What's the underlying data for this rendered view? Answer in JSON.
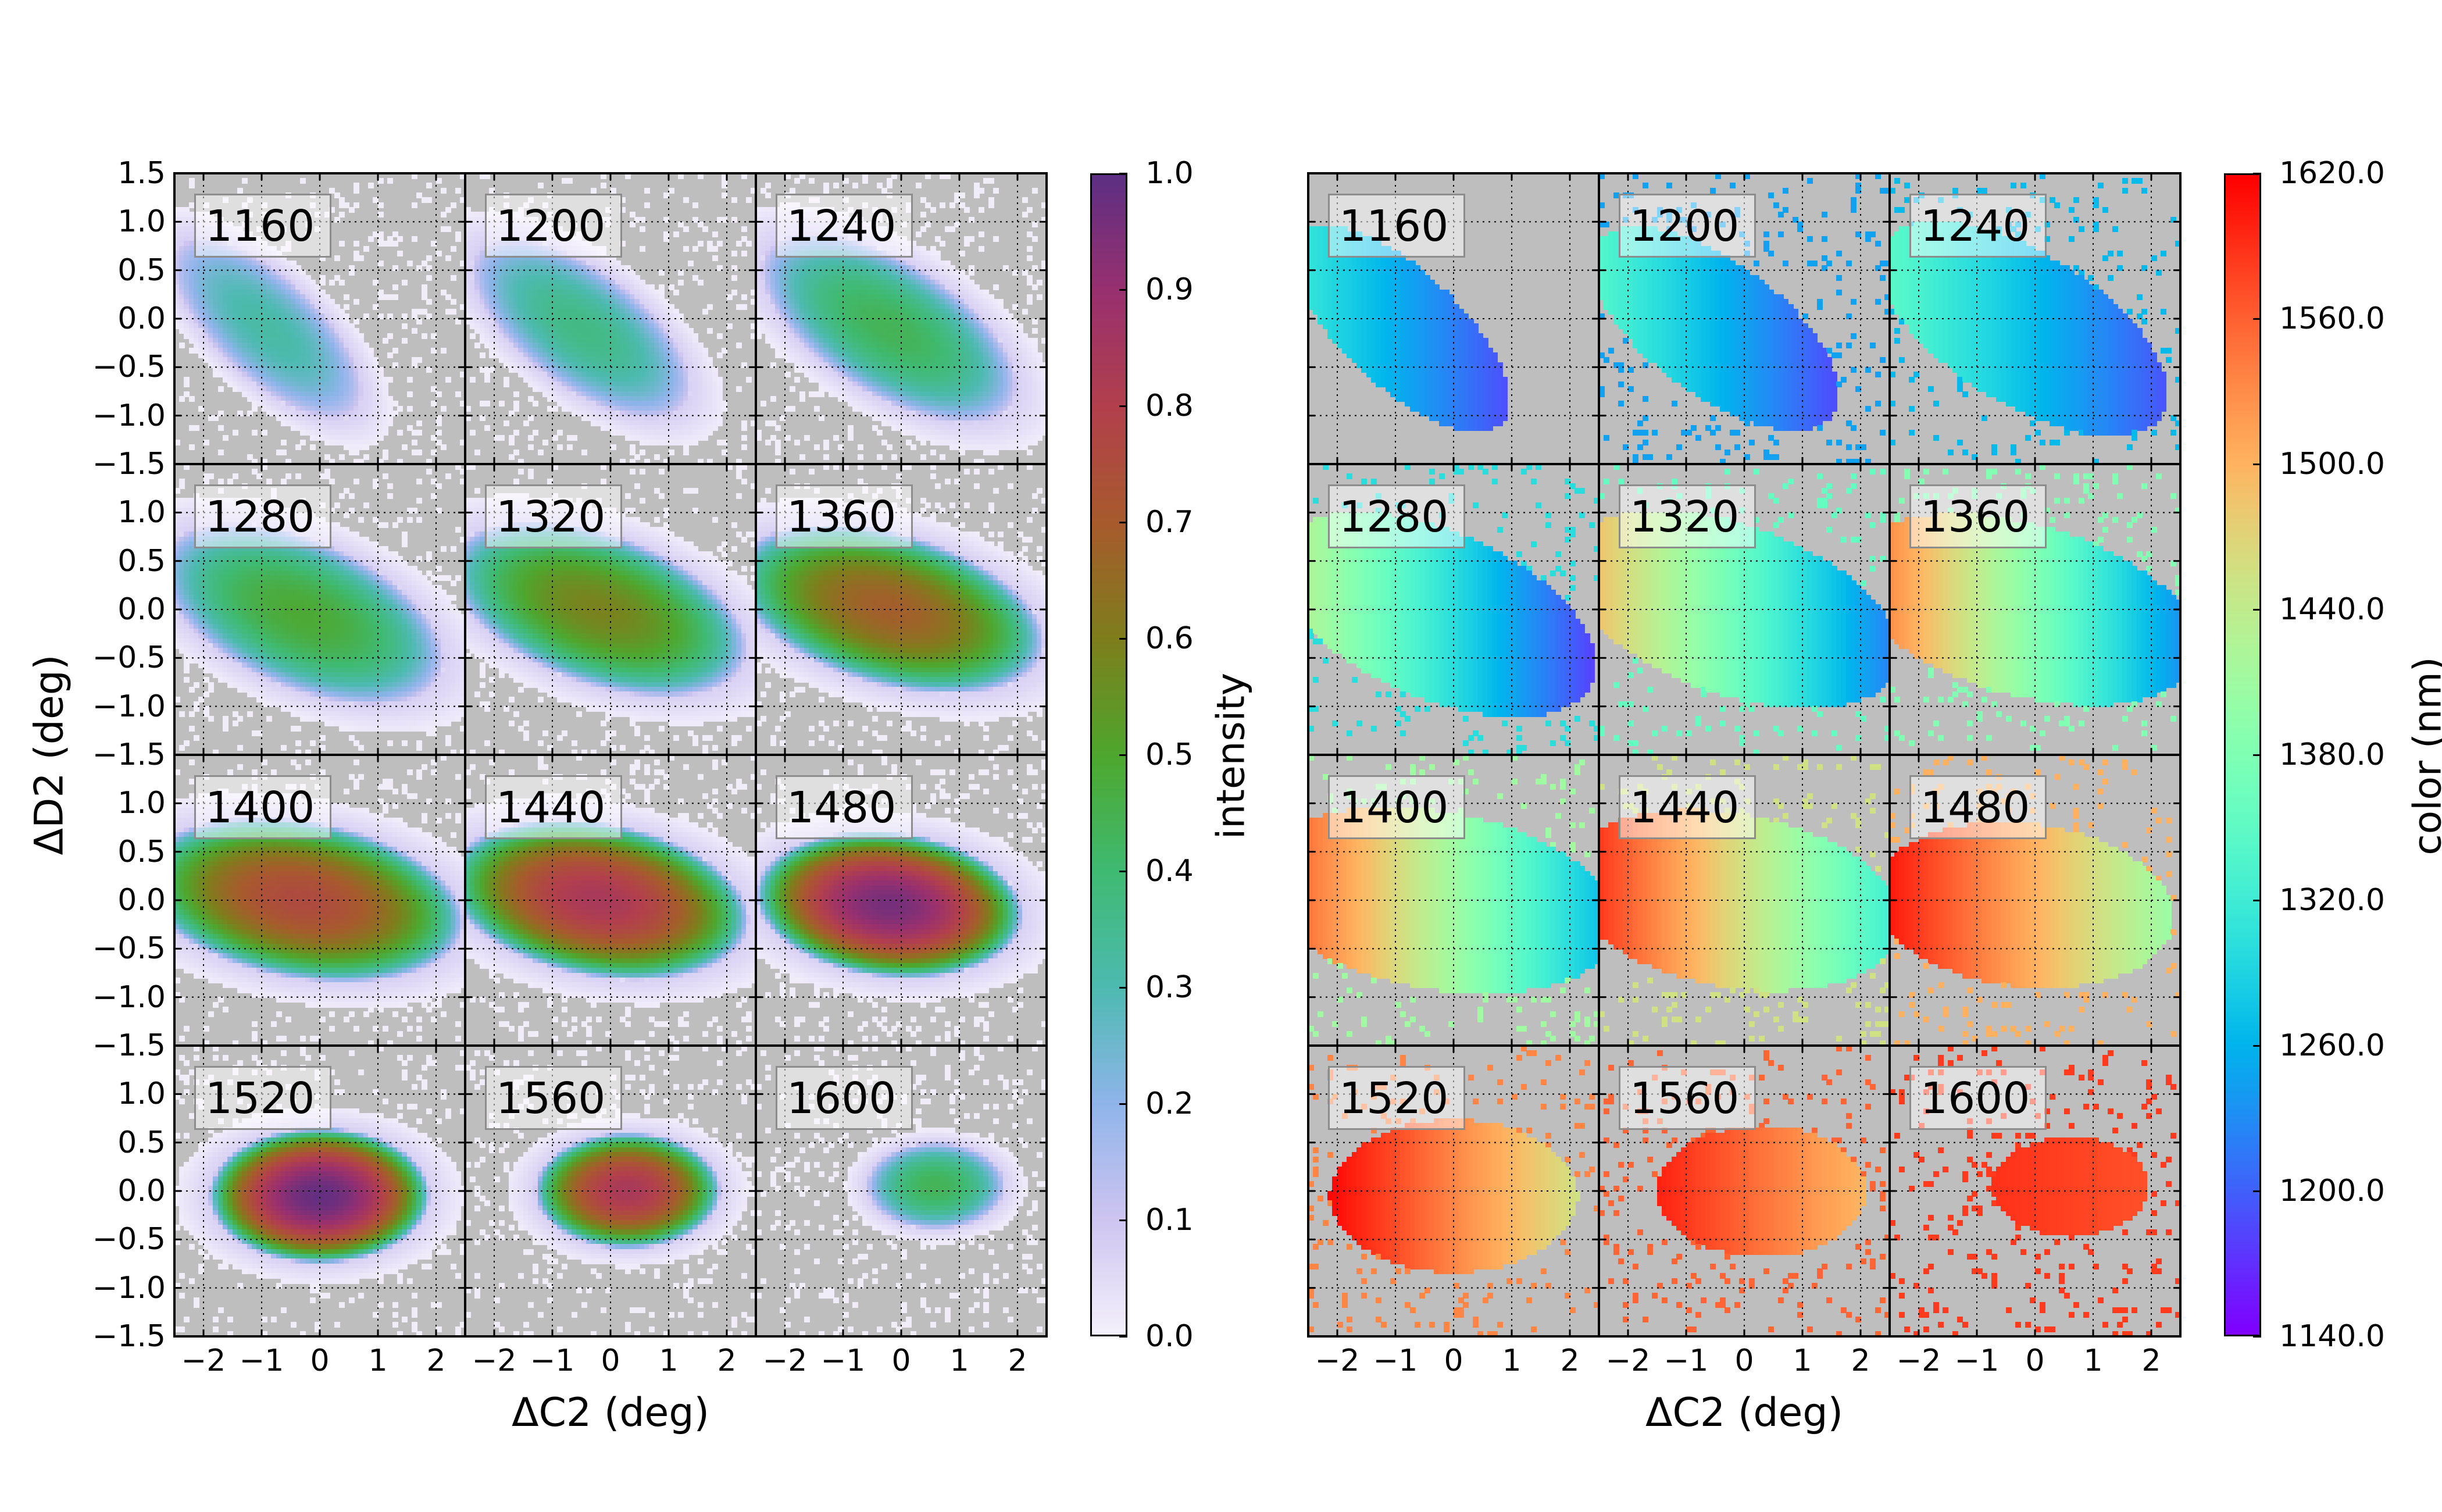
{
  "chart_data": [
    {
      "type": "heatmap",
      "layout": "4x3 grid of panels",
      "xlabel": "ΔC2 (deg)",
      "ylabel": "ΔD2 (deg)",
      "xlim": [
        -2.5,
        2.5
      ],
      "ylim": [
        -1.5,
        1.5
      ],
      "xticks": [
        "−2",
        "−1",
        "0",
        "1",
        "2"
      ],
      "yticks": [
        "1.5",
        "1.0",
        "0.5",
        "0.0",
        "−0.5",
        "−1.0",
        "−1.5"
      ],
      "grid": true,
      "background": "#bebebe",
      "colorbar": {
        "label": "intensity",
        "range": [
          0.0,
          1.0
        ],
        "ticks": [
          "0.0",
          "0.1",
          "0.2",
          "0.3",
          "0.4",
          "0.5",
          "0.6",
          "0.7",
          "0.8",
          "0.9",
          "1.0"
        ],
        "colormap": [
          "#f4f0fb",
          "#cdc4f0",
          "#8fb4ea",
          "#4dbab0",
          "#3fba72",
          "#4ea72e",
          "#7e7e1c",
          "#a75b2d",
          "#b2404c",
          "#99306f",
          "#5e2f82"
        ]
      },
      "panels": [
        {
          "label": "1160",
          "center": [
            -0.9,
            -0.1
          ],
          "semi_axes": [
            1.8,
            0.62
          ],
          "tilt_deg": -25,
          "peak": 0.28
        },
        {
          "label": "1200",
          "center": [
            -0.5,
            -0.1
          ],
          "semi_axes": [
            2.0,
            0.68
          ],
          "tilt_deg": -20,
          "peak": 0.33
        },
        {
          "label": "1240",
          "center": [
            -0.2,
            -0.1
          ],
          "semi_axes": [
            2.3,
            0.75
          ],
          "tilt_deg": -17,
          "peak": 0.4
        },
        {
          "label": "1280",
          "center": [
            -0.3,
            -0.05
          ],
          "semi_axes": [
            2.5,
            0.8
          ],
          "tilt_deg": -12,
          "peak": 0.45
        },
        {
          "label": "1320",
          "center": [
            -0.2,
            0.0
          ],
          "semi_axes": [
            2.6,
            0.8
          ],
          "tilt_deg": -10,
          "peak": 0.55
        },
        {
          "label": "1360",
          "center": [
            -0.2,
            0.0
          ],
          "semi_axes": [
            2.7,
            0.8
          ],
          "tilt_deg": -8,
          "peak": 0.65
        },
        {
          "label": "1400",
          "center": [
            -0.3,
            0.0
          ],
          "semi_axes": [
            2.8,
            0.82
          ],
          "tilt_deg": -5,
          "peak": 0.72
        },
        {
          "label": "1440",
          "center": [
            -0.2,
            0.0
          ],
          "semi_axes": [
            2.6,
            0.8
          ],
          "tilt_deg": -5,
          "peak": 0.8
        },
        {
          "label": "1480",
          "center": [
            -0.2,
            -0.05
          ],
          "semi_axes": [
            2.3,
            0.75
          ],
          "tilt_deg": -3,
          "peak": 0.92
        },
        {
          "label": "1520",
          "center": [
            0.0,
            -0.05
          ],
          "semi_axes": [
            1.9,
            0.7
          ],
          "tilt_deg": 0,
          "peak": 0.95
        },
        {
          "label": "1560",
          "center": [
            0.3,
            0.0
          ],
          "semi_axes": [
            1.6,
            0.6
          ],
          "tilt_deg": 0,
          "peak": 0.8
        },
        {
          "label": "1600",
          "center": [
            0.6,
            0.05
          ],
          "semi_axes": [
            1.2,
            0.45
          ],
          "tilt_deg": 0,
          "peak": 0.4
        }
      ]
    },
    {
      "type": "heatmap",
      "layout": "4x3 grid of panels",
      "xlabel": "ΔC2 (deg)",
      "xlim": [
        -2.5,
        2.5
      ],
      "ylim": [
        -1.5,
        1.5
      ],
      "xticks": [
        "−2",
        "−1",
        "0",
        "1",
        "2"
      ],
      "grid": true,
      "background": "#bebebe",
      "colorbar": {
        "label": "color (nm)",
        "range": [
          1140.0,
          1620.0
        ],
        "ticks": [
          "1140.0",
          "1200.0",
          "1260.0",
          "1320.0",
          "1380.0",
          "1440.0",
          "1500.0",
          "1560.0",
          "1620.0"
        ],
        "colormap": "rainbow"
      },
      "panels": [
        {
          "label": "1160",
          "color_at_x_minus2": 1290,
          "color_at_x_plus2": 1150,
          "noise": false
        },
        {
          "label": "1200",
          "color_at_x_minus2": 1320,
          "color_at_x_plus2": 1170,
          "noise": true
        },
        {
          "label": "1240",
          "color_at_x_minus2": 1330,
          "color_at_x_plus2": 1200,
          "noise": true
        },
        {
          "label": "1280",
          "color_at_x_minus2": 1400,
          "color_at_x_plus2": 1200,
          "noise": true
        },
        {
          "label": "1320",
          "color_at_x_minus2": 1460,
          "color_at_x_plus2": 1250,
          "noise": true
        },
        {
          "label": "1360",
          "color_at_x_minus2": 1500,
          "color_at_x_plus2": 1265,
          "noise": true
        },
        {
          "label": "1400",
          "color_at_x_minus2": 1520,
          "color_at_x_plus2": 1300,
          "noise": true
        },
        {
          "label": "1440",
          "color_at_x_minus2": 1560,
          "color_at_x_plus2": 1350,
          "noise": true
        },
        {
          "label": "1480",
          "color_at_x_minus2": 1585,
          "color_at_x_plus2": 1420,
          "noise": true
        },
        {
          "label": "1520",
          "color_at_x_minus2": 1612,
          "color_at_x_plus2": 1460,
          "noise": true
        },
        {
          "label": "1560",
          "color_at_x_minus2": 1615,
          "color_at_x_plus2": 1500,
          "noise": true
        },
        {
          "label": "1600",
          "color_at_x_minus2": 1600,
          "color_at_x_plus2": 1570,
          "noise": true
        }
      ]
    }
  ]
}
